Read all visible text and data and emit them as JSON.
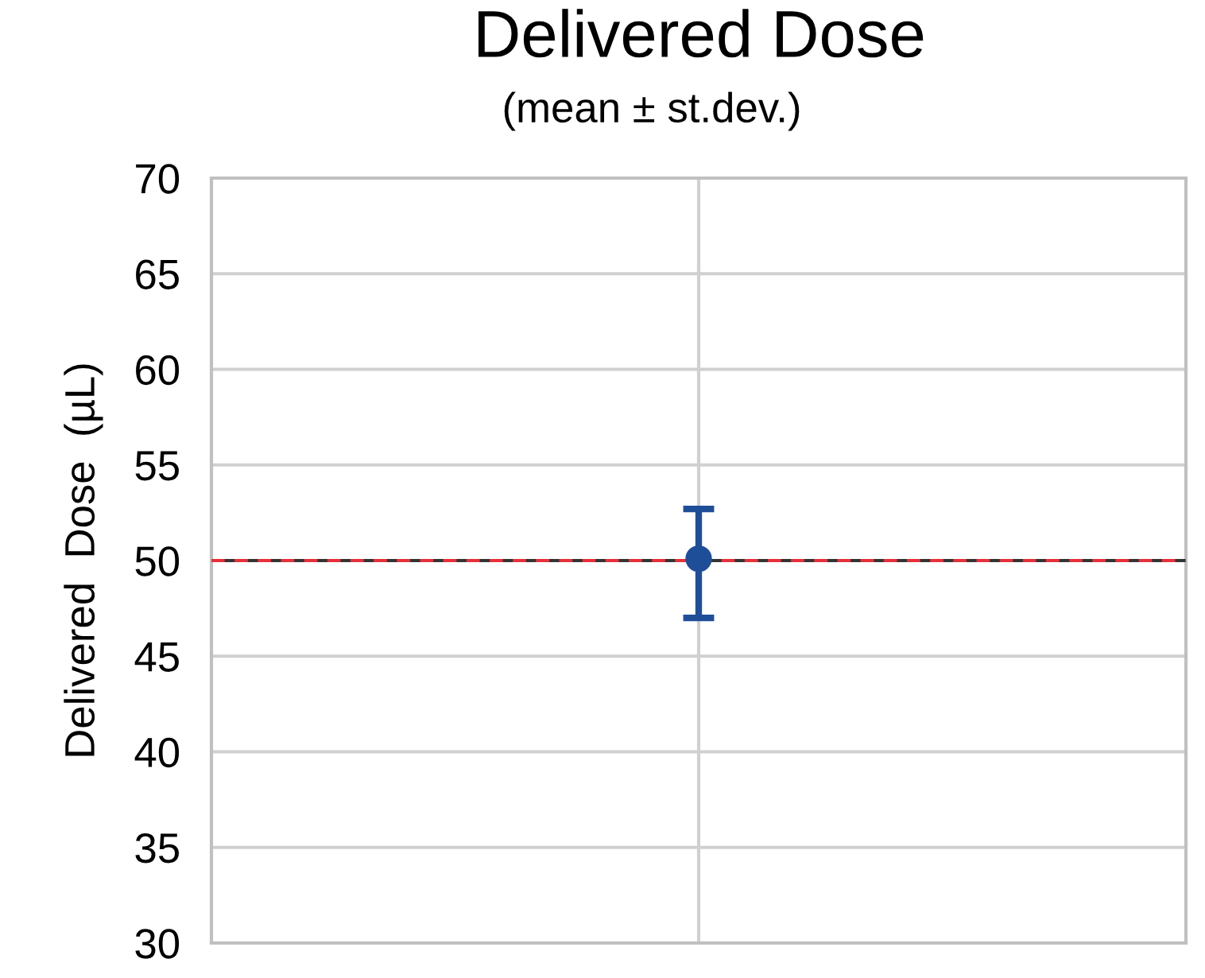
{
  "chart_data": {
    "type": "scatter",
    "title": "Delivered Dose",
    "subtitle": "(mean ± st.dev.)",
    "ylabel": "Delivered  Dose  (µL)",
    "categories": [
      null
    ],
    "series": [
      {
        "color": "#1f4e99",
        "values": [
          50.1
        ],
        "errors": [
          [
            47.0,
            52.7
          ]
        ]
      }
    ],
    "marker": "circle",
    "ylim": [
      30,
      70
    ],
    "yticks": [
      30,
      35,
      40,
      45,
      50,
      55,
      60,
      65,
      70
    ],
    "grid": true,
    "tick_labels": "y",
    "ref_lines": [
      {
        "axis": "y",
        "value": 50,
        "color": "#333333",
        "line_style": "solid"
      },
      {
        "axis": "y",
        "value": 50,
        "color": "#e8303a",
        "line_style": "dashed"
      }
    ]
  }
}
